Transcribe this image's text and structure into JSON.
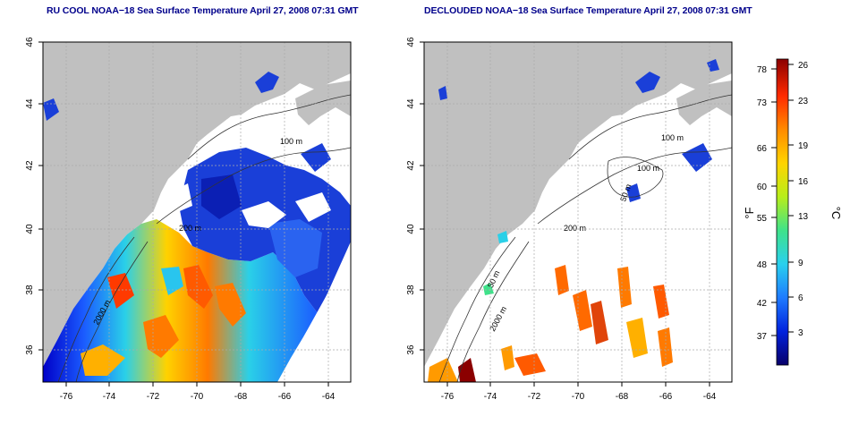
{
  "left_panel": {
    "title": "RU COOL NOAA−18 Sea Surface Temperature April 27, 2008 07:31 GMT",
    "x_ticks": [
      "-76",
      "-74",
      "-72",
      "-70",
      "-68",
      "-66",
      "-64"
    ],
    "y_ticks": [
      "36",
      "38",
      "40",
      "42",
      "44",
      "46"
    ],
    "contour_labels": [
      "100 m",
      "200 m",
      "2000 m"
    ]
  },
  "right_panel": {
    "title": "DECLOUDED NOAA−18 Sea Surface Temperature April 27, 2008 07:31 GMT",
    "x_ticks": [
      "-76",
      "-74",
      "-72",
      "-70",
      "-68",
      "-66",
      "-64"
    ],
    "y_ticks": [
      "36",
      "38",
      "40",
      "42",
      "44",
      "46"
    ],
    "contour_labels": [
      "100 m",
      "100 m",
      "50 m",
      "200 m",
      "50 m",
      "2000 m"
    ]
  },
  "colorbar": {
    "fahrenheit_ticks": [
      "78",
      "73",
      "66",
      "60",
      "55",
      "48",
      "42",
      "37"
    ],
    "celsius_ticks": [
      "26",
      "23",
      "19",
      "16",
      "13",
      "9",
      "6",
      "3"
    ],
    "fahrenheit_label": "°F",
    "celsius_label": "°C",
    "colors": [
      "#08006a",
      "#0022dd",
      "#1e7bff",
      "#29d0ee",
      "#3fe28a",
      "#b8ee1a",
      "#ffd400",
      "#ff8a00",
      "#ff2a00",
      "#8b0000"
    ]
  }
}
